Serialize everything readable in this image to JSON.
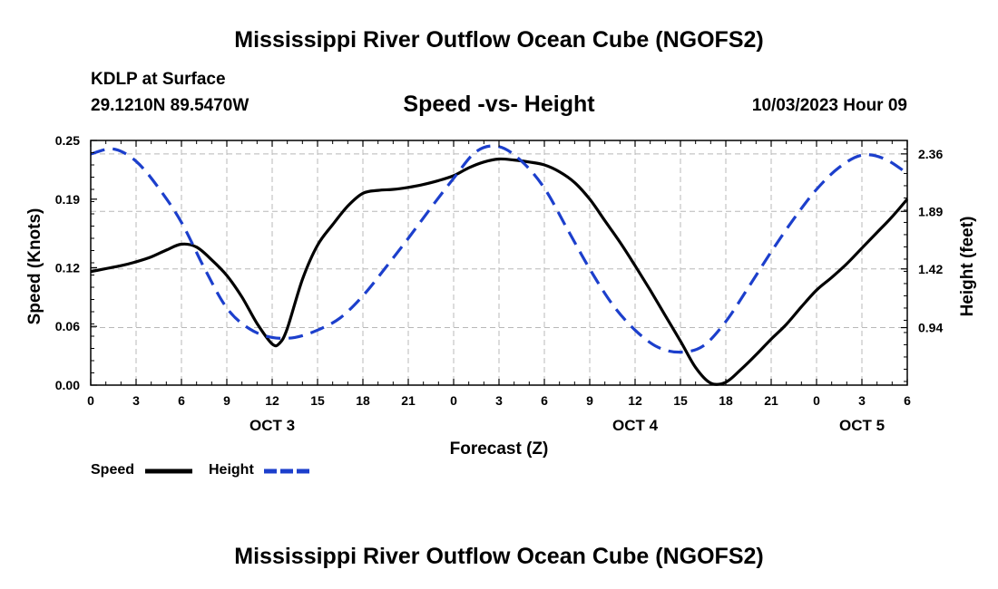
{
  "header": {
    "main_title": "Mississippi River Outflow Ocean Cube (NGOFS2)",
    "station": "KDLP at Surface",
    "coordinates": "29.1210N  89.5470W",
    "timestamp": "10/03/2023 Hour 09"
  },
  "footer": {
    "title": "Mississippi River Outflow Ocean Cube (NGOFS2)"
  },
  "legend": {
    "speed_label": "Speed",
    "height_label": "Height"
  },
  "chart_data": {
    "type": "line",
    "title": "Speed -vs- Height",
    "xlabel": "Forecast (Z)",
    "ylabel": "Speed (Knots)",
    "y2label": "Height (feet)",
    "x_range": [
      0,
      54
    ],
    "ylim": [
      0,
      0.25
    ],
    "y2lim": [
      0.47,
      2.47
    ],
    "x_ticks": [
      0,
      3,
      6,
      9,
      12,
      15,
      18,
      21,
      24,
      27,
      30,
      33,
      36,
      39,
      42,
      45,
      48,
      51,
      54
    ],
    "x_tick_labels": [
      "0",
      "3",
      "6",
      "9",
      "12",
      "15",
      "18",
      "21",
      "0",
      "3",
      "6",
      "9",
      "12",
      "15",
      "18",
      "21",
      "0",
      "3",
      "6"
    ],
    "date_labels": [
      {
        "x": 12,
        "label": "OCT 3"
      },
      {
        "x": 36,
        "label": "OCT 4"
      },
      {
        "x": 51,
        "label": "OCT 5"
      }
    ],
    "y_ticks": [
      0.0,
      0.06,
      0.12,
      0.19,
      0.25
    ],
    "y_tick_labels": [
      "0.00",
      "0.06",
      "0.12",
      "0.19",
      "0.25"
    ],
    "y2_ticks": [
      0.94,
      1.42,
      1.89,
      2.36
    ],
    "y2_tick_labels": [
      "0.94",
      "1.42",
      "1.89",
      "2.36"
    ],
    "grid": true,
    "legend_position": "bottom-left",
    "series": [
      {
        "name": "Speed",
        "axis": "left",
        "color": "#000000",
        "dash": "solid",
        "x": [
          0,
          2,
          3,
          4,
          5,
          6,
          7,
          8,
          9,
          10,
          11,
          12,
          12.5,
          13,
          14,
          15,
          16,
          17,
          18,
          19,
          20,
          21,
          22,
          23,
          24,
          25,
          26,
          27,
          28,
          29,
          30,
          31,
          32,
          33,
          34,
          35,
          36,
          37,
          38,
          39,
          40,
          41,
          42,
          43,
          44,
          45,
          46,
          47,
          48,
          49,
          50,
          51,
          52,
          53,
          54
        ],
        "values": [
          0.116,
          0.122,
          0.126,
          0.131,
          0.138,
          0.144,
          0.141,
          0.128,
          0.112,
          0.09,
          0.063,
          0.042,
          0.043,
          0.058,
          0.108,
          0.143,
          0.164,
          0.183,
          0.196,
          0.199,
          0.2,
          0.202,
          0.205,
          0.209,
          0.214,
          0.222,
          0.228,
          0.231,
          0.23,
          0.228,
          0.225,
          0.218,
          0.207,
          0.19,
          0.168,
          0.146,
          0.122,
          0.097,
          0.071,
          0.045,
          0.018,
          0.002,
          0.003,
          0.016,
          0.031,
          0.047,
          0.062,
          0.08,
          0.097,
          0.11,
          0.124,
          0.14,
          0.156,
          0.172,
          0.19
        ]
      },
      {
        "name": "Height",
        "axis": "right",
        "color": "#1c3fcc",
        "dash": "dashed",
        "x": [
          0,
          1.5,
          3,
          4.5,
          6,
          7.5,
          9,
          10.5,
          12,
          13.5,
          15,
          16.5,
          18,
          19.5,
          21,
          22.5,
          24,
          25.5,
          27,
          28.5,
          30,
          31.5,
          33,
          34.5,
          36,
          37.5,
          39,
          40.5,
          42,
          43.5,
          45,
          46.5,
          48,
          49.5,
          51,
          52.5,
          54
        ],
        "values": [
          2.36,
          2.4,
          2.3,
          2.08,
          1.8,
          1.43,
          1.1,
          0.93,
          0.86,
          0.86,
          0.92,
          1.02,
          1.2,
          1.43,
          1.67,
          1.92,
          2.16,
          2.38,
          2.42,
          2.3,
          2.08,
          1.75,
          1.42,
          1.13,
          0.92,
          0.78,
          0.74,
          0.79,
          0.99,
          1.27,
          1.56,
          1.83,
          2.07,
          2.25,
          2.35,
          2.32,
          2.2
        ]
      }
    ]
  }
}
